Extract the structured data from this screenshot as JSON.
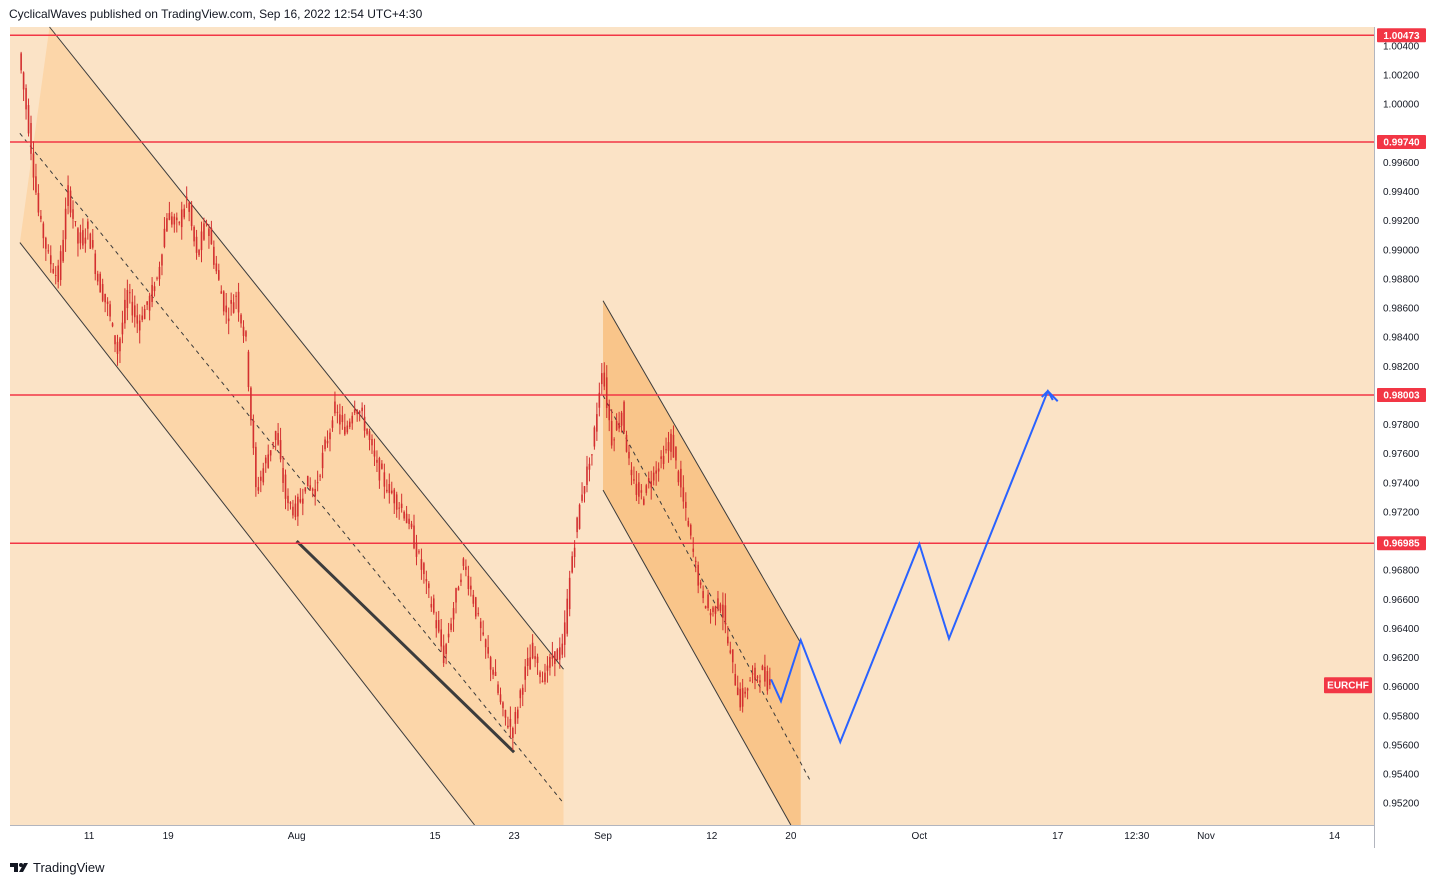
{
  "header": {
    "publisher": "CyclicalWaves published on TradingView.com, Sep 16, 2022 12:54 UTC+4:30"
  },
  "footer": {
    "brand": "TradingView",
    "logo_icon": "tradingview-logo-icon"
  },
  "colors": {
    "background": "#fbe3c6",
    "channel_fill": "#fcd3a3",
    "channel_fill_recent": "#f8c07f",
    "level_line": "#f23645",
    "projection": "#2962ff",
    "candle": "#d32f2f"
  },
  "chart_data": {
    "type": "candlestick",
    "symbol": "EURCHF",
    "currency": "CHF",
    "yrange": [
      0.9505,
      1.0053
    ],
    "y_ticks": [
      "0.95200",
      "0.95400",
      "0.95600",
      "0.95800",
      "0.96000",
      "0.96200",
      "0.96400",
      "0.96600",
      "0.96800",
      "0.97200",
      "0.97400",
      "0.97600",
      "0.97800",
      "0.98200",
      "0.98400",
      "0.98600",
      "0.98800",
      "0.99000",
      "0.99200",
      "0.99400",
      "0.99600",
      "1.00000",
      "1.00200",
      "1.00400"
    ],
    "x_ticks": [
      {
        "label": "11",
        "date": "2022-07-11"
      },
      {
        "label": "19",
        "date": "2022-07-19"
      },
      {
        "label": "Aug",
        "date": "2022-08-01"
      },
      {
        "label": "15",
        "date": "2022-08-15"
      },
      {
        "label": "23",
        "date": "2022-08-23"
      },
      {
        "label": "Sep",
        "date": "2022-09-01"
      },
      {
        "label": "12",
        "date": "2022-09-12"
      },
      {
        "label": "20",
        "date": "2022-09-20"
      },
      {
        "label": "Oct",
        "date": "2022-10-03"
      },
      {
        "label": "17",
        "date": "2022-10-17"
      },
      {
        "label": "12:30",
        "date": "2022-10-25"
      },
      {
        "label": "Nov",
        "date": "2022-11-01"
      },
      {
        "label": "14",
        "date": "2022-11-14"
      }
    ],
    "levels": [
      {
        "label": "1.00473",
        "value": 1.00473
      },
      {
        "label": "0.99740",
        "value": 0.9974
      },
      {
        "label": "0.98003",
        "value": 0.98003
      },
      {
        "label": "0.96985",
        "value": 0.96985
      }
    ],
    "last_label": "EURCHF",
    "last_value": 0.9601,
    "price_path": [
      [
        "2022-07-04",
        1.0035
      ],
      [
        "2022-07-05",
        0.9985
      ],
      [
        "2022-07-06",
        0.9925
      ],
      [
        "2022-07-07",
        0.9895
      ],
      [
        "2022-07-08",
        0.988
      ],
      [
        "2022-07-09",
        0.994
      ],
      [
        "2022-07-10",
        0.9905
      ],
      [
        "2022-07-11",
        0.9915
      ],
      [
        "2022-07-12",
        0.988
      ],
      [
        "2022-07-13",
        0.986
      ],
      [
        "2022-07-14",
        0.983
      ],
      [
        "2022-07-15",
        0.987
      ],
      [
        "2022-07-16",
        0.985
      ],
      [
        "2022-07-17",
        0.9862
      ],
      [
        "2022-07-18",
        0.988
      ],
      [
        "2022-07-19",
        0.9925
      ],
      [
        "2022-07-20",
        0.9915
      ],
      [
        "2022-07-21",
        0.9935
      ],
      [
        "2022-07-22",
        0.9895
      ],
      [
        "2022-07-23",
        0.992
      ],
      [
        "2022-07-24",
        0.9885
      ],
      [
        "2022-07-25",
        0.9855
      ],
      [
        "2022-07-26",
        0.987
      ],
      [
        "2022-07-27",
        0.9835
      ],
      [
        "2022-07-28",
        0.9735
      ],
      [
        "2022-07-29",
        0.9755
      ],
      [
        "2022-07-30",
        0.9775
      ],
      [
        "2022-07-31",
        0.973
      ],
      [
        "2022-08-01",
        0.972
      ],
      [
        "2022-08-02",
        0.974
      ],
      [
        "2022-08-03",
        0.9735
      ],
      [
        "2022-08-04",
        0.9765
      ],
      [
        "2022-08-05",
        0.979
      ],
      [
        "2022-08-06",
        0.9775
      ],
      [
        "2022-08-07",
        0.9795
      ],
      [
        "2022-08-08",
        0.978
      ],
      [
        "2022-08-09",
        0.9755
      ],
      [
        "2022-08-10",
        0.974
      ],
      [
        "2022-08-11",
        0.973
      ],
      [
        "2022-08-12",
        0.972
      ],
      [
        "2022-08-13",
        0.97
      ],
      [
        "2022-08-14",
        0.9675
      ],
      [
        "2022-08-15",
        0.965
      ],
      [
        "2022-08-16",
        0.962
      ],
      [
        "2022-08-17",
        0.9655
      ],
      [
        "2022-08-18",
        0.9685
      ],
      [
        "2022-08-19",
        0.966
      ],
      [
        "2022-08-20",
        0.963
      ],
      [
        "2022-08-21",
        0.961
      ],
      [
        "2022-08-22",
        0.958
      ],
      [
        "2022-08-23",
        0.957
      ],
      [
        "2022-08-24",
        0.9605
      ],
      [
        "2022-08-25",
        0.9625
      ],
      [
        "2022-08-26",
        0.9605
      ],
      [
        "2022-08-27",
        0.962
      ],
      [
        "2022-08-28",
        0.9625
      ],
      [
        "2022-08-29",
        0.969
      ],
      [
        "2022-08-30",
        0.9735
      ],
      [
        "2022-08-31",
        0.976
      ],
      [
        "2022-09-01",
        0.982
      ],
      [
        "2022-09-02",
        0.977
      ],
      [
        "2022-09-03",
        0.979
      ],
      [
        "2022-09-04",
        0.974
      ],
      [
        "2022-09-05",
        0.973
      ],
      [
        "2022-09-06",
        0.9745
      ],
      [
        "2022-09-07",
        0.9755
      ],
      [
        "2022-09-08",
        0.977
      ],
      [
        "2022-09-09",
        0.9735
      ],
      [
        "2022-09-10",
        0.97
      ],
      [
        "2022-09-11",
        0.9665
      ],
      [
        "2022-09-12",
        0.965
      ],
      [
        "2022-09-13",
        0.966
      ],
      [
        "2022-09-14",
        0.962
      ],
      [
        "2022-09-15",
        0.959
      ],
      [
        "2022-09-16",
        0.9605
      ],
      [
        "2022-09-17",
        0.961
      ],
      [
        "2022-09-18",
        0.9601
      ]
    ],
    "projection": [
      [
        "2022-09-18",
        0.9605
      ],
      [
        "2022-09-19",
        0.959
      ],
      [
        "2022-09-21",
        0.9632
      ],
      [
        "2022-09-25",
        0.9562
      ],
      [
        "2022-10-03",
        0.9698
      ],
      [
        "2022-10-06",
        0.9633
      ],
      [
        "2022-10-16",
        0.9803
      ],
      [
        "2022-10-17",
        0.9796
      ]
    ],
    "channels": [
      {
        "upper": [
          [
            "2022-07-07",
            1.0053
          ],
          [
            "2022-08-28",
            0.9612
          ]
        ],
        "lower": [
          [
            "2022-07-04",
            0.9905
          ],
          [
            "2022-08-19",
            0.9505
          ]
        ],
        "mid": [
          [
            "2022-07-04",
            0.998
          ],
          [
            "2022-08-28",
            0.952
          ]
        ],
        "support": [
          [
            "2022-08-01",
            0.97
          ],
          [
            "2022-08-23",
            0.9555
          ]
        ]
      },
      {
        "upper": [
          [
            "2022-09-01",
            0.9865
          ],
          [
            "2022-09-21",
            0.963
          ]
        ],
        "lower": [
          [
            "2022-09-01",
            0.9735
          ],
          [
            "2022-09-20",
            0.9505
          ]
        ],
        "mid": [
          [
            "2022-09-01",
            0.98
          ],
          [
            "2022-09-22",
            0.9535
          ]
        ]
      }
    ]
  }
}
